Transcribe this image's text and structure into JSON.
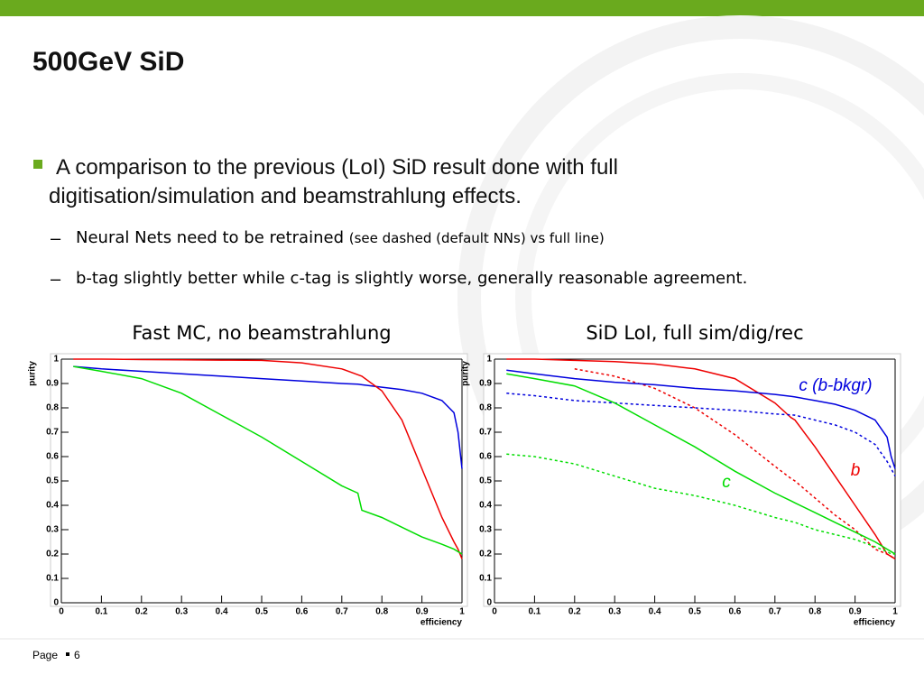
{
  "title": "500GeV SiD",
  "bullet": "A comparison to the previous (LoI) SiD result done with full digitisation/simulation and beamstrahlung effects.",
  "sub_bullets": [
    {
      "text": "Neural Nets need to be retrained",
      "note": "(see dashed (default NNs) vs full line)"
    },
    {
      "text": "b-tag slightly better while c-tag is slightly worse, generally reasonable agreement."
    }
  ],
  "footer": {
    "label": "Page",
    "number": "6"
  },
  "chart_data": [
    {
      "type": "line",
      "title": "Fast MC, no beamstrahlung",
      "y_label": "purity",
      "x_label": "efficiency",
      "xlim": [
        0,
        1
      ],
      "ylim": [
        0,
        1
      ],
      "xticks": [
        0,
        0.1,
        0.2,
        0.3,
        0.4,
        0.5,
        0.6,
        0.7,
        0.8,
        0.9,
        1
      ],
      "yticks": [
        0,
        0.1,
        0.2,
        0.3,
        0.4,
        0.5,
        0.6,
        0.7,
        0.8,
        0.9,
        1
      ],
      "x": [
        0.03,
        0.1,
        0.2,
        0.3,
        0.4,
        0.5,
        0.6,
        0.7,
        0.74,
        0.75,
        0.8,
        0.85,
        0.9,
        0.95,
        0.98,
        0.99,
        1.0
      ],
      "series": [
        {
          "color": "#0000dd",
          "dashed": false,
          "values": [
            0.97,
            0.96,
            0.95,
            0.94,
            0.93,
            0.92,
            0.91,
            0.9,
            0.897,
            0.895,
            0.885,
            0.875,
            0.86,
            0.83,
            0.78,
            0.7,
            0.55
          ]
        },
        {
          "color": "#ee0000",
          "dashed": false,
          "values": [
            1.0,
            1.0,
            0.998,
            0.997,
            0.996,
            0.995,
            0.985,
            0.96,
            0.936,
            0.93,
            0.87,
            0.75,
            0.55,
            0.35,
            0.25,
            0.22,
            0.18
          ]
        },
        {
          "color": "#00dd00",
          "dashed": false,
          "values": [
            0.97,
            0.95,
            0.92,
            0.86,
            0.77,
            0.68,
            0.58,
            0.48,
            0.45,
            0.38,
            0.35,
            0.31,
            0.27,
            0.24,
            0.22,
            0.21,
            0.2
          ]
        }
      ]
    },
    {
      "type": "line",
      "title": "SiD LoI, full sim/dig/rec",
      "y_label": "purity",
      "x_label": "efficiency",
      "xlim": [
        0,
        1
      ],
      "ylim": [
        0,
        1
      ],
      "xticks": [
        0,
        0.1,
        0.2,
        0.3,
        0.4,
        0.5,
        0.6,
        0.7,
        0.8,
        0.9,
        1
      ],
      "yticks": [
        0,
        0.1,
        0.2,
        0.3,
        0.4,
        0.5,
        0.6,
        0.7,
        0.8,
        0.9,
        1
      ],
      "x": [
        0.03,
        0.1,
        0.2,
        0.3,
        0.4,
        0.5,
        0.6,
        0.7,
        0.74,
        0.75,
        0.8,
        0.85,
        0.9,
        0.95,
        0.98,
        0.99,
        1.0
      ],
      "series": [
        {
          "color": "#ee0000",
          "dashed": false,
          "values": [
            1.0,
            1.0,
            0.995,
            0.99,
            0.98,
            0.96,
            0.92,
            0.82,
            0.76,
            0.75,
            0.64,
            0.52,
            0.4,
            0.28,
            0.2,
            0.19,
            0.18
          ]
        },
        {
          "color": "#ee0000",
          "dashed": true,
          "values": [
            null,
            null,
            0.96,
            0.93,
            0.88,
            0.8,
            0.69,
            0.56,
            0.51,
            0.5,
            0.43,
            0.36,
            0.3,
            0.22,
            0.2,
            0.19,
            0.18
          ]
        },
        {
          "color": "#0000dd",
          "dashed": false,
          "values": [
            0.955,
            0.94,
            0.92,
            0.905,
            0.895,
            0.88,
            0.87,
            0.855,
            0.847,
            0.845,
            0.83,
            0.815,
            0.79,
            0.75,
            0.68,
            0.6,
            0.55
          ]
        },
        {
          "color": "#0000dd",
          "dashed": true,
          "values": [
            0.86,
            0.85,
            0.83,
            0.82,
            0.81,
            0.8,
            0.79,
            0.775,
            0.771,
            0.77,
            0.75,
            0.73,
            0.7,
            0.65,
            0.58,
            0.55,
            0.52
          ]
        },
        {
          "color": "#00dd00",
          "dashed": false,
          "values": [
            0.94,
            0.92,
            0.89,
            0.82,
            0.73,
            0.64,
            0.54,
            0.45,
            0.418,
            0.41,
            0.37,
            0.33,
            0.29,
            0.25,
            0.22,
            0.21,
            0.2
          ]
        },
        {
          "color": "#00dd00",
          "dashed": true,
          "values": [
            0.61,
            0.6,
            0.57,
            0.52,
            0.47,
            0.44,
            0.4,
            0.35,
            0.334,
            0.33,
            0.3,
            0.28,
            0.26,
            0.23,
            0.21,
            0.2,
            0.2
          ]
        }
      ],
      "annotations": [
        {
          "text": "c (b-bkgr)",
          "color": "#0000dd"
        },
        {
          "text": "b",
          "color": "#ee0000"
        },
        {
          "text": "c",
          "color": "#00dd00"
        }
      ]
    }
  ]
}
